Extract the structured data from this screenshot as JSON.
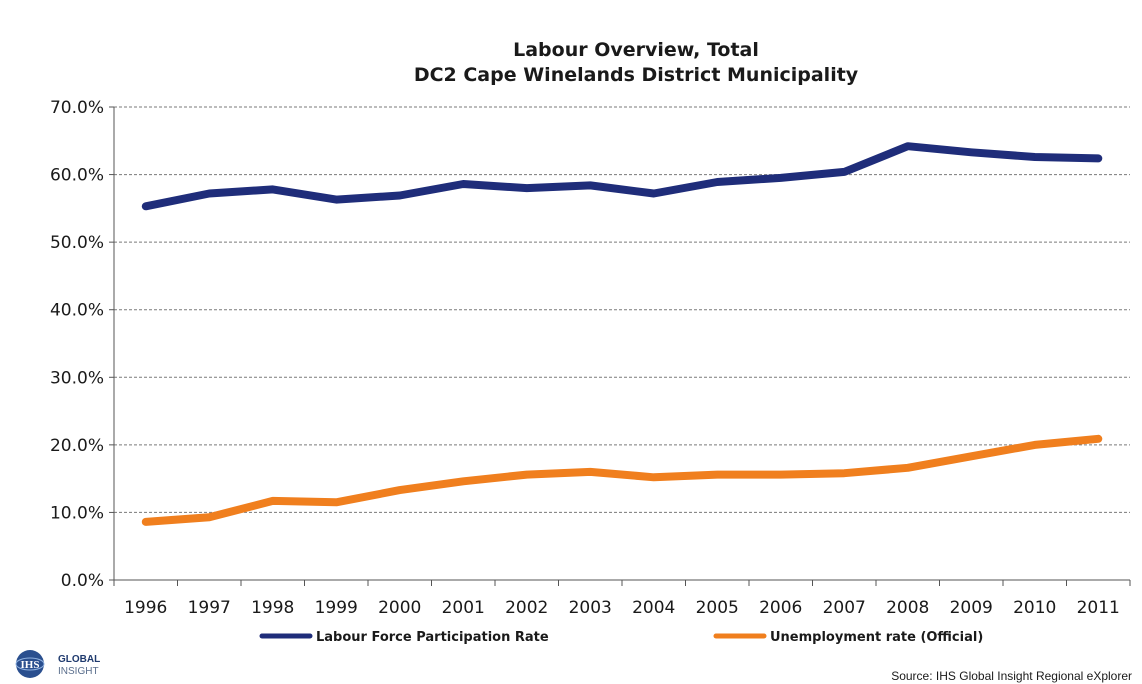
{
  "chart_data": {
    "type": "line",
    "title": [
      "Labour Overview, Total",
      "DC2 Cape Winelands  District  Municipality"
    ],
    "categories": [
      "1996",
      "1997",
      "1998",
      "1999",
      "2000",
      "2001",
      "2002",
      "2003",
      "2004",
      "2005",
      "2006",
      "2007",
      "2008",
      "2009",
      "2010",
      "2011"
    ],
    "y_ticks": [
      "0.0%",
      "10.0%",
      "20.0%",
      "30.0%",
      "40.0%",
      "50.0%",
      "60.0%",
      "70.0%"
    ],
    "ylim": [
      0,
      70
    ],
    "grid": true,
    "legend_position": "bottom",
    "series": [
      {
        "name": "Labour Force Participation Rate",
        "color": "#1f2d7a",
        "values": [
          55.3,
          57.2,
          57.8,
          56.3,
          56.9,
          58.6,
          58.0,
          58.4,
          57.2,
          58.9,
          59.5,
          60.4,
          64.2,
          63.3,
          62.6,
          62.4
        ]
      },
      {
        "name": "Unemployment rate (Official)",
        "color": "#f07f1e",
        "values": [
          8.6,
          9.3,
          11.7,
          11.5,
          13.3,
          14.6,
          15.6,
          16.0,
          15.2,
          15.6,
          15.6,
          15.8,
          16.6,
          18.3,
          20.0,
          20.9
        ]
      }
    ]
  },
  "logo": {
    "line1": "GLOBAL",
    "line2": "INSIGHT",
    "mark": "IHS"
  },
  "source": "Source: IHS Global Insight Regional eXplorer"
}
